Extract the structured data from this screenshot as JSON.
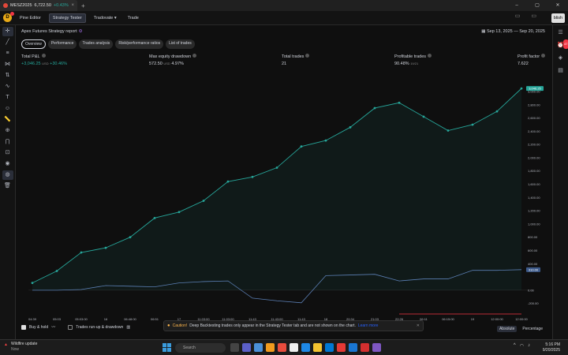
{
  "browser": {
    "tab_title": "MESZ2025",
    "tab_price": "6,722.50",
    "tab_change": "+0.43%",
    "new_tab": "+"
  },
  "appbar": {
    "logo_letter": "D",
    "tabs": [
      "Pine Editor",
      "Strategy Tester",
      "Tradovate",
      "Trade"
    ],
    "publish": "blish"
  },
  "report": {
    "title": "Apex Futures Strategy report",
    "date_range": "Sep 13, 2025 — Sep 20, 2025",
    "subtabs": [
      "Overview",
      "Performance",
      "Trades analysis",
      "Risk/performance ratios",
      "List of trades"
    ]
  },
  "metrics": {
    "total_pnl_label": "Total P&L",
    "total_pnl_value": "+3,046.25",
    "total_pnl_unit": "USD",
    "total_pnl_pct": "+30.46%",
    "max_dd_label": "Max equity drawdown",
    "max_dd_value": "572.50",
    "max_dd_unit": "USD",
    "max_dd_pct": "4.97%",
    "total_trades_label": "Total trades",
    "total_trades_value": "21",
    "profitable_label": "Profitable trades",
    "profitable_value": "90.48%",
    "profitable_ratio": "19/21",
    "pf_label": "Profit factor",
    "pf_value": "7.622"
  },
  "chart_data": {
    "type": "line",
    "x_tick_labels": [
      "04:39",
      "05:03",
      "05:03:00",
      "16",
      "06:48:00",
      "06:51",
      "17",
      "11:03:00",
      "11:03:00",
      "11:43",
      "11:43:00",
      "11:43",
      "18",
      "20:34",
      "21:03",
      "22:26",
      "06:11",
      "06:15:00",
      "19",
      "12:00:00",
      "12:00:00"
    ],
    "y_tick_labels": [
      "3,000.00",
      "2,800.00",
      "2,600.00",
      "2,400.00",
      "2,200.00",
      "2,000.00",
      "1,800.00",
      "1,600.00",
      "1,400.00",
      "1,200.00",
      "1,000.00",
      "800.00",
      "600.00",
      "400.00",
      "0.00",
      "-200.00"
    ],
    "ylim": [
      -240,
      3250
    ],
    "series": [
      {
        "color": "#26a69a",
        "values": [
          110,
          290,
          570,
          640,
          800,
          1090,
          1180,
          1350,
          1640,
          1710,
          1850,
          2170,
          2260,
          2460,
          2750,
          2830,
          2620,
          2410,
          2500,
          2700,
          3046
        ]
      },
      {
        "color": "#5b7fb4",
        "values": [
          0,
          0,
          10,
          70,
          60,
          50,
          110,
          130,
          140,
          -120,
          -160,
          -190,
          220,
          230,
          240,
          140,
          170,
          170,
          300,
          300,
          310
        ]
      }
    ],
    "last_value_label": "3,046.25",
    "bh_value_label": "310.00"
  },
  "bottom": {
    "buy_hold": "Buy & hold",
    "runup": "Trades run-up & drawdown",
    "notice_title": "Caution!",
    "notice_text": "Deep Backtesting trades only appear in the Strategy Tester tab and are not shown on the chart.",
    "notice_link": "Learn more",
    "absolute": "Absolute",
    "percentage": "Percentage"
  },
  "taskbar": {
    "weather_title": "Wildfire update",
    "weather_sub": "Now",
    "search_placeholder": "Search",
    "time": "5:16 PM",
    "date": "9/20/2025"
  },
  "colors": {
    "equity": "#26a69a",
    "buyhold": "#5b7fb4",
    "accent_blue": "#2962ff",
    "drawdown_red": "#f23645"
  }
}
